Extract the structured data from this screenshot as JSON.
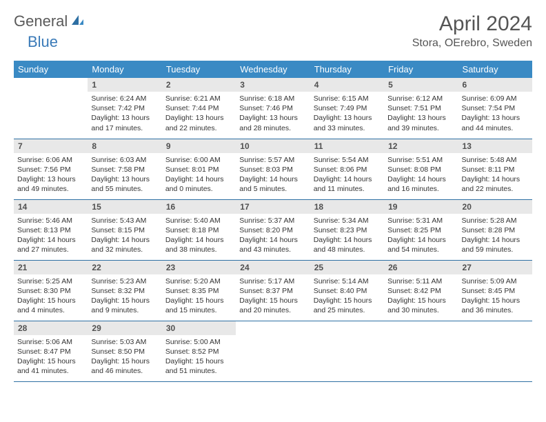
{
  "logo": {
    "general": "General",
    "blue": "Blue"
  },
  "title": "April 2024",
  "location": "Stora, OErebro, Sweden",
  "colors": {
    "header_bg": "#3a8ac4",
    "header_text": "#ffffff",
    "daynum_bg": "#e8e8e8",
    "border": "#2d6fa3",
    "logo_gray": "#5a5a5a",
    "logo_blue": "#3a7ab8"
  },
  "weekdays": [
    "Sunday",
    "Monday",
    "Tuesday",
    "Wednesday",
    "Thursday",
    "Friday",
    "Saturday"
  ],
  "weeks": [
    [
      {
        "n": "",
        "sunrise": "",
        "sunset": "",
        "daylight": ""
      },
      {
        "n": "1",
        "sunrise": "Sunrise: 6:24 AM",
        "sunset": "Sunset: 7:42 PM",
        "daylight": "Daylight: 13 hours and 17 minutes."
      },
      {
        "n": "2",
        "sunrise": "Sunrise: 6:21 AM",
        "sunset": "Sunset: 7:44 PM",
        "daylight": "Daylight: 13 hours and 22 minutes."
      },
      {
        "n": "3",
        "sunrise": "Sunrise: 6:18 AM",
        "sunset": "Sunset: 7:46 PM",
        "daylight": "Daylight: 13 hours and 28 minutes."
      },
      {
        "n": "4",
        "sunrise": "Sunrise: 6:15 AM",
        "sunset": "Sunset: 7:49 PM",
        "daylight": "Daylight: 13 hours and 33 minutes."
      },
      {
        "n": "5",
        "sunrise": "Sunrise: 6:12 AM",
        "sunset": "Sunset: 7:51 PM",
        "daylight": "Daylight: 13 hours and 39 minutes."
      },
      {
        "n": "6",
        "sunrise": "Sunrise: 6:09 AM",
        "sunset": "Sunset: 7:54 PM",
        "daylight": "Daylight: 13 hours and 44 minutes."
      }
    ],
    [
      {
        "n": "7",
        "sunrise": "Sunrise: 6:06 AM",
        "sunset": "Sunset: 7:56 PM",
        "daylight": "Daylight: 13 hours and 49 minutes."
      },
      {
        "n": "8",
        "sunrise": "Sunrise: 6:03 AM",
        "sunset": "Sunset: 7:58 PM",
        "daylight": "Daylight: 13 hours and 55 minutes."
      },
      {
        "n": "9",
        "sunrise": "Sunrise: 6:00 AM",
        "sunset": "Sunset: 8:01 PM",
        "daylight": "Daylight: 14 hours and 0 minutes."
      },
      {
        "n": "10",
        "sunrise": "Sunrise: 5:57 AM",
        "sunset": "Sunset: 8:03 PM",
        "daylight": "Daylight: 14 hours and 5 minutes."
      },
      {
        "n": "11",
        "sunrise": "Sunrise: 5:54 AM",
        "sunset": "Sunset: 8:06 PM",
        "daylight": "Daylight: 14 hours and 11 minutes."
      },
      {
        "n": "12",
        "sunrise": "Sunrise: 5:51 AM",
        "sunset": "Sunset: 8:08 PM",
        "daylight": "Daylight: 14 hours and 16 minutes."
      },
      {
        "n": "13",
        "sunrise": "Sunrise: 5:48 AM",
        "sunset": "Sunset: 8:11 PM",
        "daylight": "Daylight: 14 hours and 22 minutes."
      }
    ],
    [
      {
        "n": "14",
        "sunrise": "Sunrise: 5:46 AM",
        "sunset": "Sunset: 8:13 PM",
        "daylight": "Daylight: 14 hours and 27 minutes."
      },
      {
        "n": "15",
        "sunrise": "Sunrise: 5:43 AM",
        "sunset": "Sunset: 8:15 PM",
        "daylight": "Daylight: 14 hours and 32 minutes."
      },
      {
        "n": "16",
        "sunrise": "Sunrise: 5:40 AM",
        "sunset": "Sunset: 8:18 PM",
        "daylight": "Daylight: 14 hours and 38 minutes."
      },
      {
        "n": "17",
        "sunrise": "Sunrise: 5:37 AM",
        "sunset": "Sunset: 8:20 PM",
        "daylight": "Daylight: 14 hours and 43 minutes."
      },
      {
        "n": "18",
        "sunrise": "Sunrise: 5:34 AM",
        "sunset": "Sunset: 8:23 PM",
        "daylight": "Daylight: 14 hours and 48 minutes."
      },
      {
        "n": "19",
        "sunrise": "Sunrise: 5:31 AM",
        "sunset": "Sunset: 8:25 PM",
        "daylight": "Daylight: 14 hours and 54 minutes."
      },
      {
        "n": "20",
        "sunrise": "Sunrise: 5:28 AM",
        "sunset": "Sunset: 8:28 PM",
        "daylight": "Daylight: 14 hours and 59 minutes."
      }
    ],
    [
      {
        "n": "21",
        "sunrise": "Sunrise: 5:25 AM",
        "sunset": "Sunset: 8:30 PM",
        "daylight": "Daylight: 15 hours and 4 minutes."
      },
      {
        "n": "22",
        "sunrise": "Sunrise: 5:23 AM",
        "sunset": "Sunset: 8:32 PM",
        "daylight": "Daylight: 15 hours and 9 minutes."
      },
      {
        "n": "23",
        "sunrise": "Sunrise: 5:20 AM",
        "sunset": "Sunset: 8:35 PM",
        "daylight": "Daylight: 15 hours and 15 minutes."
      },
      {
        "n": "24",
        "sunrise": "Sunrise: 5:17 AM",
        "sunset": "Sunset: 8:37 PM",
        "daylight": "Daylight: 15 hours and 20 minutes."
      },
      {
        "n": "25",
        "sunrise": "Sunrise: 5:14 AM",
        "sunset": "Sunset: 8:40 PM",
        "daylight": "Daylight: 15 hours and 25 minutes."
      },
      {
        "n": "26",
        "sunrise": "Sunrise: 5:11 AM",
        "sunset": "Sunset: 8:42 PM",
        "daylight": "Daylight: 15 hours and 30 minutes."
      },
      {
        "n": "27",
        "sunrise": "Sunrise: 5:09 AM",
        "sunset": "Sunset: 8:45 PM",
        "daylight": "Daylight: 15 hours and 36 minutes."
      }
    ],
    [
      {
        "n": "28",
        "sunrise": "Sunrise: 5:06 AM",
        "sunset": "Sunset: 8:47 PM",
        "daylight": "Daylight: 15 hours and 41 minutes."
      },
      {
        "n": "29",
        "sunrise": "Sunrise: 5:03 AM",
        "sunset": "Sunset: 8:50 PM",
        "daylight": "Daylight: 15 hours and 46 minutes."
      },
      {
        "n": "30",
        "sunrise": "Sunrise: 5:00 AM",
        "sunset": "Sunset: 8:52 PM",
        "daylight": "Daylight: 15 hours and 51 minutes."
      },
      {
        "n": "",
        "sunrise": "",
        "sunset": "",
        "daylight": ""
      },
      {
        "n": "",
        "sunrise": "",
        "sunset": "",
        "daylight": ""
      },
      {
        "n": "",
        "sunrise": "",
        "sunset": "",
        "daylight": ""
      },
      {
        "n": "",
        "sunrise": "",
        "sunset": "",
        "daylight": ""
      }
    ]
  ]
}
